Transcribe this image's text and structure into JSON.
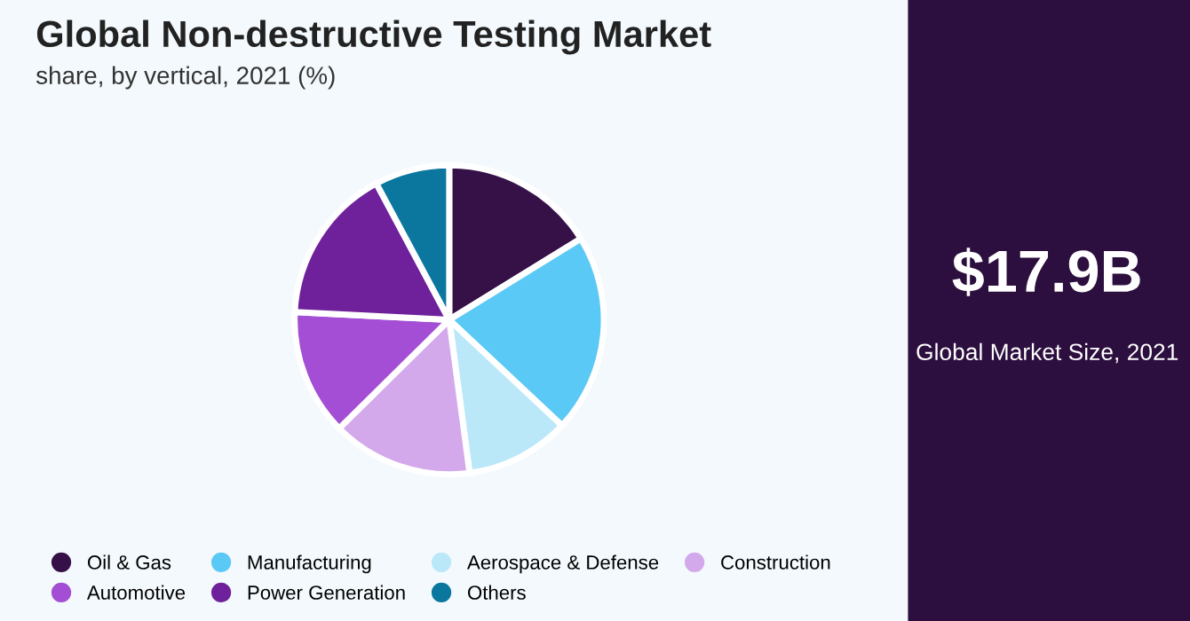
{
  "chart_data": {
    "type": "pie",
    "title": "Global Non-destructive Testing Market",
    "subtitle": "share, by vertical, 2021 (%)",
    "categories": [
      "Oil & Gas",
      "Manufacturing",
      "Aerospace & Defense",
      "Construction",
      "Automotive",
      "Power Generation",
      "Others"
    ],
    "values": [
      16.2,
      20.8,
      10.9,
      14.7,
      13.2,
      16.4,
      7.8
    ],
    "colors": [
      "#361148",
      "#5bc9f5",
      "#bbe8f9",
      "#d4a9ec",
      "#a34ed4",
      "#6f219b",
      "#0b779f"
    ],
    "legend": "bottom",
    "annotations": [
      "$17.9B",
      "Global Market Size, 2021"
    ]
  }
}
